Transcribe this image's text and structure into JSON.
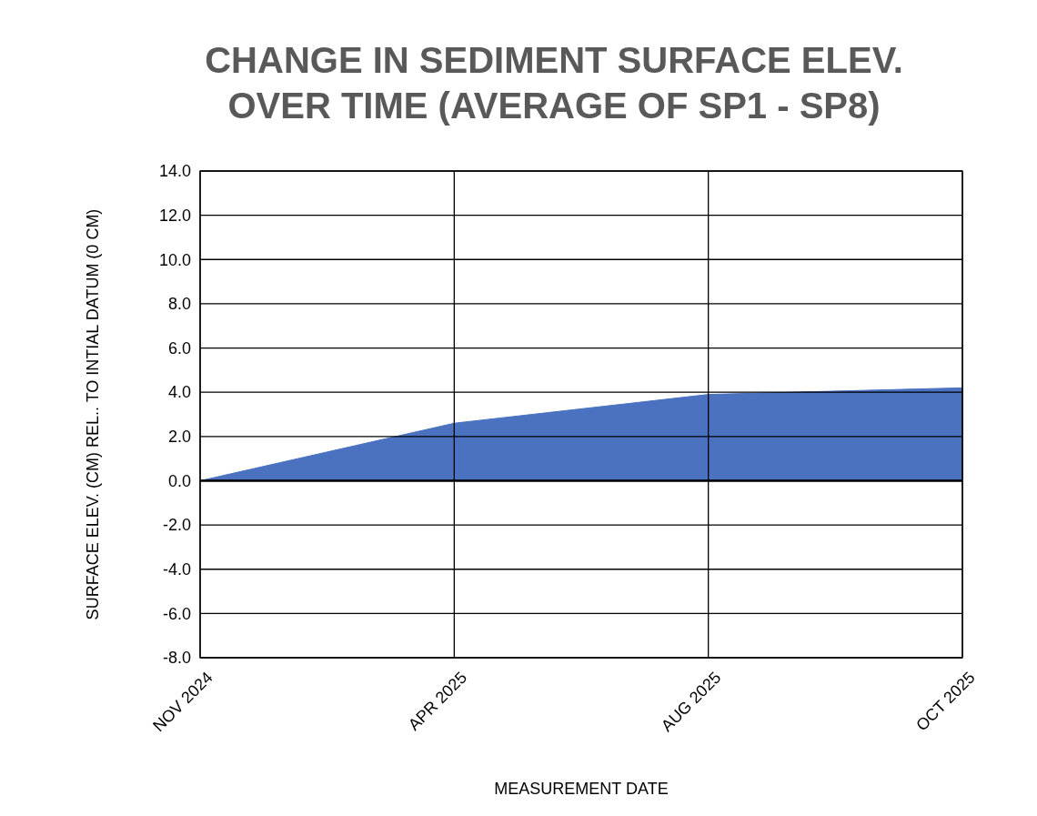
{
  "chart_data": {
    "type": "area",
    "title": "CHANGE IN SEDIMENT SURFACE ELEV. OVER TIME (AVERAGE OF SP1 - SP8)",
    "xlabel": "MEASUREMENT DATE",
    "ylabel": "SURFACE ELEV. (CM) REL.. TO INTIAL DATUM (0 CM)",
    "categories": [
      "NOV 2024",
      "APR 2025",
      "AUG 2025",
      "OCT 2025"
    ],
    "series": [
      {
        "color": "#4a72c0",
        "values": [
          0,
          2.6,
          3.9,
          4.2
        ]
      }
    ],
    "ylim": [
      -8,
      14
    ],
    "yticks": [
      {
        "value": -8,
        "label": "-8.0"
      },
      {
        "value": -6,
        "label": "-6.0"
      },
      {
        "value": -4,
        "label": "-4.0"
      },
      {
        "value": -2,
        "label": "-2.0"
      },
      {
        "value": 0,
        "label": "0.0"
      },
      {
        "value": 2,
        "label": "2.0"
      },
      {
        "value": 4,
        "label": "4.0"
      },
      {
        "value": 6,
        "label": "6.0"
      },
      {
        "value": 8,
        "label": "8.0"
      },
      {
        "value": 10,
        "label": "10.0"
      },
      {
        "value": 12,
        "label": "12.0"
      },
      {
        "value": 14,
        "label": "14.0"
      }
    ],
    "grid": true
  }
}
